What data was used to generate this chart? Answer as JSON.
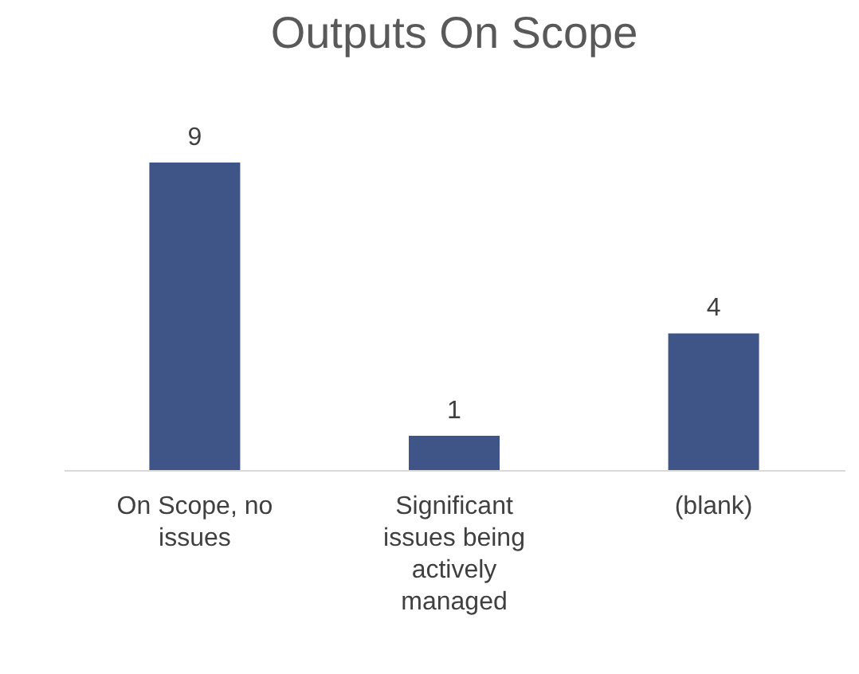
{
  "chart_data": {
    "type": "bar",
    "title": "Outputs On Scope",
    "categories": [
      "On Scope, no issues",
      "Significant issues being actively managed",
      "(blank)"
    ],
    "values": [
      9,
      1,
      4
    ],
    "color": "#3f5587",
    "data_labels": true,
    "grid": false
  }
}
